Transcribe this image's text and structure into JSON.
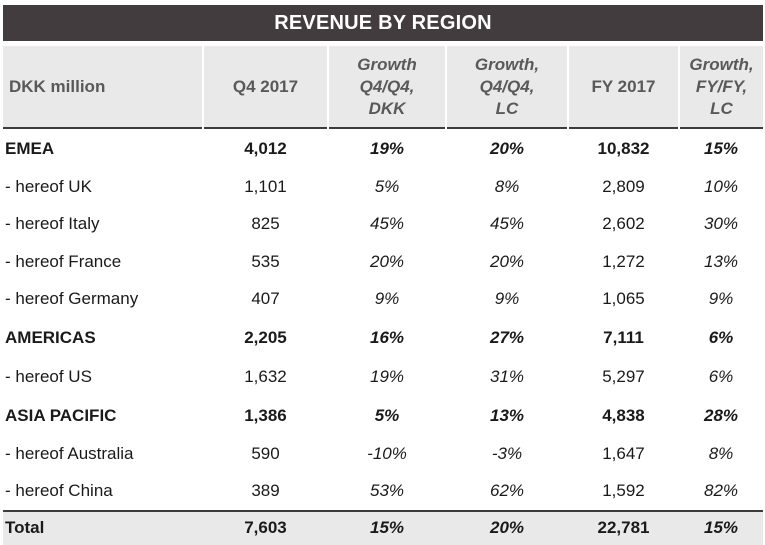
{
  "title": "REVENUE BY REGION",
  "headers": {
    "col0": "DKK million",
    "col1": "Q4 2017",
    "col2": [
      "Growth",
      "Q4/Q4,",
      "DKK"
    ],
    "col3": [
      "Growth,",
      "Q4/Q4,",
      "LC"
    ],
    "col4": "FY 2017",
    "col5": [
      "Growth,",
      "FY/FY,",
      "LC"
    ]
  },
  "rows": [
    {
      "name": "EMEA",
      "q4": "4,012",
      "g_dkk": "19%",
      "g_lc": "20%",
      "fy": "10,832",
      "g_fy": "15%"
    },
    {
      "name": "- hereof UK",
      "q4": "1,101",
      "g_dkk": "5%",
      "g_lc": "8%",
      "fy": "2,809",
      "g_fy": "10%"
    },
    {
      "name": "- hereof Italy",
      "q4": "825",
      "g_dkk": "45%",
      "g_lc": "45%",
      "fy": "2,602",
      "g_fy": "30%"
    },
    {
      "name": "- hereof France",
      "q4": "535",
      "g_dkk": "20%",
      "g_lc": "20%",
      "fy": "1,272",
      "g_fy": "13%"
    },
    {
      "name": "- hereof Germany",
      "q4": "407",
      "g_dkk": "9%",
      "g_lc": "9%",
      "fy": "1,065",
      "g_fy": "9%"
    },
    {
      "name": "AMERICAS",
      "q4": "2,205",
      "g_dkk": "16%",
      "g_lc": "27%",
      "fy": "7,111",
      "g_fy": "6%"
    },
    {
      "name": "- hereof US",
      "q4": "1,632",
      "g_dkk": "19%",
      "g_lc": "31%",
      "fy": "5,297",
      "g_fy": "6%"
    },
    {
      "name": "ASIA PACIFIC",
      "q4": "1,386",
      "g_dkk": "5%",
      "g_lc": "13%",
      "fy": "4,838",
      "g_fy": "28%"
    },
    {
      "name": "- hereof Australia",
      "q4": "590",
      "g_dkk": "-10%",
      "g_lc": "-3%",
      "fy": "1,647",
      "g_fy": "8%"
    },
    {
      "name": "- hereof China",
      "q4": "389",
      "g_dkk": "53%",
      "g_lc": "62%",
      "fy": "1,592",
      "g_fy": "82%"
    }
  ],
  "total": {
    "name": "Total",
    "q4": "7,603",
    "g_dkk": "15%",
    "g_lc": "20%",
    "fy": "22,781",
    "g_fy": "15%"
  }
}
